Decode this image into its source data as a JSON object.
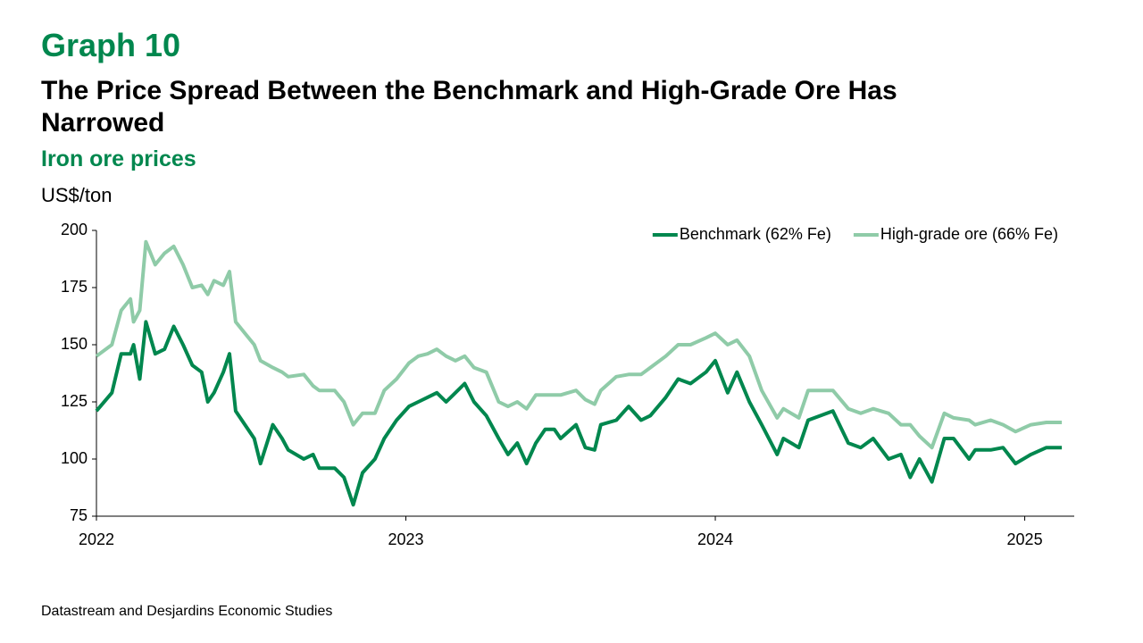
{
  "chart_data": {
    "type": "line",
    "label": "Graph 10",
    "title": "The Price Spread Between the Benchmark and High-Grade Ore Has Narrowed",
    "subtitle": "Iron ore prices",
    "ylabel": "US$/ton",
    "source": "Datastream and Desjardins Economic Studies",
    "legend": "top-right",
    "x": [
      2022.0,
      2022.05,
      2022.08,
      2022.11,
      2022.12,
      2022.14,
      2022.16,
      2022.19,
      2022.22,
      2022.25,
      2022.28,
      2022.31,
      2022.34,
      2022.36,
      2022.38,
      2022.41,
      2022.43,
      2022.45,
      2022.48,
      2022.51,
      2022.53,
      2022.57,
      2022.6,
      2022.62,
      2022.67,
      2022.7,
      2022.72,
      2022.77,
      2022.8,
      2022.83,
      2022.86,
      2022.9,
      2022.93,
      2022.97,
      2023.01,
      2023.04,
      2023.07,
      2023.1,
      2023.13,
      2023.16,
      2023.19,
      2023.22,
      2023.26,
      2023.3,
      2023.33,
      2023.36,
      2023.39,
      2023.42,
      2023.45,
      2023.48,
      2023.5,
      2023.55,
      2023.58,
      2023.61,
      2023.63,
      2023.68,
      2023.72,
      2023.76,
      2023.79,
      2023.84,
      2023.88,
      2023.92,
      2023.97,
      2024.0,
      2024.04,
      2024.07,
      2024.11,
      2024.15,
      2024.2,
      2024.22,
      2024.27,
      2024.3,
      2024.34,
      2024.38,
      2024.43,
      2024.47,
      2024.51,
      2024.56,
      2024.6,
      2024.63,
      2024.66,
      2024.7,
      2024.74,
      2024.77,
      2024.82,
      2024.84,
      2024.89,
      2024.93,
      2024.97,
      2025.02,
      2025.07,
      2025.12
    ],
    "series": [
      {
        "name": "Benchmark (62% Fe)",
        "color": "#00874e",
        "values": [
          121,
          129,
          146,
          146,
          150,
          135,
          160,
          146,
          148,
          158,
          150,
          141,
          138,
          125,
          129,
          138,
          146,
          121,
          115,
          109,
          98,
          115,
          109,
          104,
          100,
          102,
          96,
          96,
          92,
          80,
          94,
          100,
          109,
          117,
          123,
          125,
          127,
          129,
          125,
          129,
          133,
          125,
          119,
          109,
          102,
          107,
          98,
          107,
          113,
          113,
          109,
          115,
          105,
          104,
          115,
          117,
          123,
          117,
          119,
          127,
          135,
          133,
          138,
          143,
          129,
          138,
          125,
          115,
          102,
          109,
          105,
          117,
          119,
          121,
          107,
          105,
          109,
          100,
          102,
          92,
          100,
          90,
          109,
          109,
          100,
          104,
          104,
          105,
          98,
          102,
          105,
          105
        ]
      },
      {
        "name": "High-grade ore (66% Fe)",
        "color": "#8fcba8",
        "values": [
          145,
          150,
          165,
          170,
          160,
          165,
          195,
          185,
          190,
          193,
          185,
          175,
          176,
          172,
          178,
          176,
          182,
          160,
          155,
          150,
          143,
          140,
          138,
          136,
          137,
          132,
          130,
          130,
          125,
          115,
          120,
          120,
          130,
          135,
          142,
          145,
          146,
          148,
          145,
          143,
          145,
          140,
          138,
          125,
          123,
          125,
          122,
          128,
          128,
          128,
          128,
          130,
          126,
          124,
          130,
          136,
          137,
          137,
          140,
          145,
          150,
          150,
          153,
          155,
          150,
          152,
          145,
          130,
          118,
          122,
          118,
          130,
          130,
          130,
          122,
          120,
          122,
          120,
          115,
          115,
          110,
          105,
          120,
          118,
          117,
          115,
          117,
          115,
          112,
          115,
          116,
          116
        ]
      }
    ],
    "xlim": [
      2022,
      2025.16
    ],
    "xticks": [
      2022,
      2023,
      2024,
      2025
    ],
    "ylim": [
      75,
      200
    ],
    "yticks": [
      75,
      100,
      125,
      150,
      175,
      200
    ]
  }
}
